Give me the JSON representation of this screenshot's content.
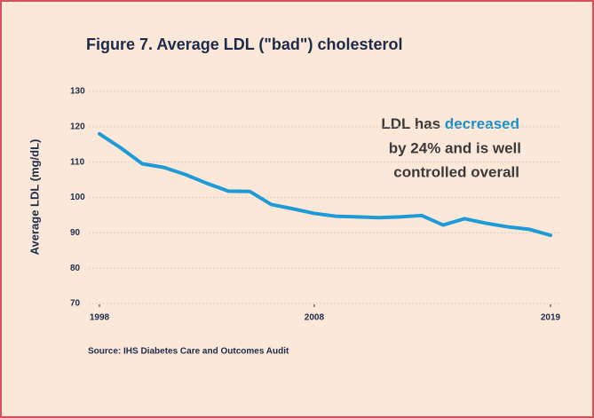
{
  "chart_data": {
    "type": "line",
    "title": "Figure 7. Average LDL (\"bad\") cholesterol",
    "ylabel": "Average LDL (mg/dL)",
    "source": "Source: IHS Diabetes Care and Outcomes Audit",
    "annotation": {
      "lead": "LDL has",
      "highlight": "decreased",
      "lines": [
        "by 24% and is well",
        "controlled overall"
      ],
      "highlight_color": "#1b8fc4"
    },
    "x": [
      1998,
      1999,
      2000,
      2001,
      2002,
      2003,
      2004,
      2005,
      2006,
      2007,
      2008,
      2009,
      2010,
      2011,
      2012,
      2013,
      2014,
      2015,
      2016,
      2017,
      2018,
      2019
    ],
    "series": [
      {
        "name": "Average LDL",
        "color": "#1e9ad6",
        "values": [
          118,
          114,
          109.5,
          108.5,
          106.5,
          104,
          101.8,
          101.7,
          98,
          96.8,
          95.5,
          94.7,
          94.5,
          94.3,
          94.5,
          94.9,
          92.2,
          94,
          92.7,
          91.7,
          91,
          89.3
        ]
      }
    ],
    "xlim": [
      1998,
      2019
    ],
    "xticks": [
      1998,
      2008,
      2019
    ],
    "ylim": [
      70,
      130
    ],
    "yticks": [
      70,
      80,
      90,
      100,
      110,
      120,
      130
    ],
    "grid": true
  }
}
